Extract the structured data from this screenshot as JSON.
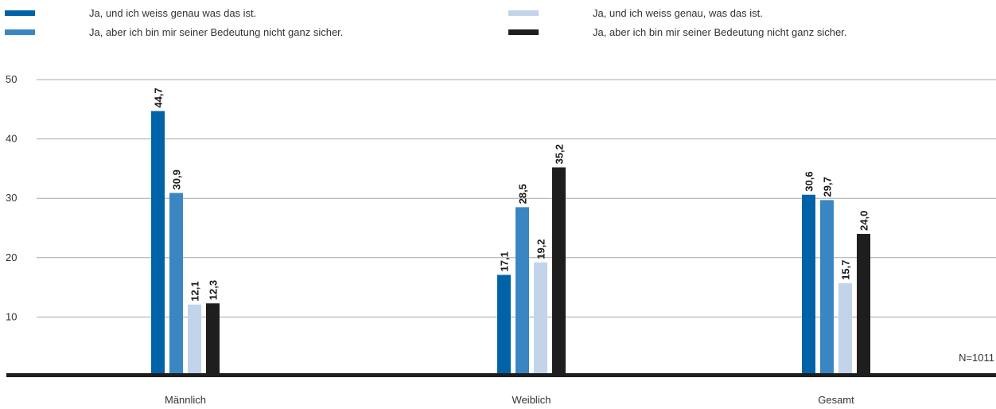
{
  "legend": [
    {
      "label": "Ja, und ich weiss genau was das ist.",
      "color": "#0063a7"
    },
    {
      "label": "Ja, aber ich bin mir seiner Bedeutung nicht ganz sicher.",
      "color": "#3a86c3"
    },
    {
      "label": "Ja, und ich weiss genau, was das ist.",
      "color": "#c2d4ea"
    },
    {
      "label": "Ja, aber ich bin mir seiner Bedeutung nicht ganz sicher.",
      "color": "#1e1e1e"
    }
  ],
  "note": "N=1011",
  "chart_data": {
    "type": "bar",
    "categories": [
      "Männlich",
      "Weiblich",
      "Gesamt"
    ],
    "series": [
      {
        "name": "Ja, und ich weiss genau was das ist.",
        "color": "#0063a7",
        "values": [
          44.7,
          17.1,
          30.6
        ],
        "labels": [
          "44,7",
          "17,1",
          "30,6"
        ]
      },
      {
        "name": "Ja, aber ich bin mir seiner Bedeutung nicht ganz sicher.",
        "color": "#3a86c3",
        "values": [
          30.9,
          28.5,
          29.7
        ],
        "labels": [
          "30,9",
          "28,5",
          "29,7"
        ]
      },
      {
        "name": "Ja, und ich weiss genau, was das ist.",
        "color": "#c2d4ea",
        "values": [
          12.1,
          19.2,
          15.7
        ],
        "labels": [
          "12,1",
          "19,2",
          "15,7"
        ]
      },
      {
        "name": "Ja, aber ich bin mir seiner Bedeutung nicht ganz sicher.",
        "color": "#1e1e1e",
        "values": [
          12.3,
          35.2,
          24.0
        ],
        "labels": [
          "12,3",
          "35,2",
          "24,0"
        ]
      }
    ],
    "yticks": [
      10,
      20,
      30,
      40,
      50
    ],
    "ylim": [
      0,
      50
    ],
    "grid": true,
    "legend_position": "top"
  }
}
